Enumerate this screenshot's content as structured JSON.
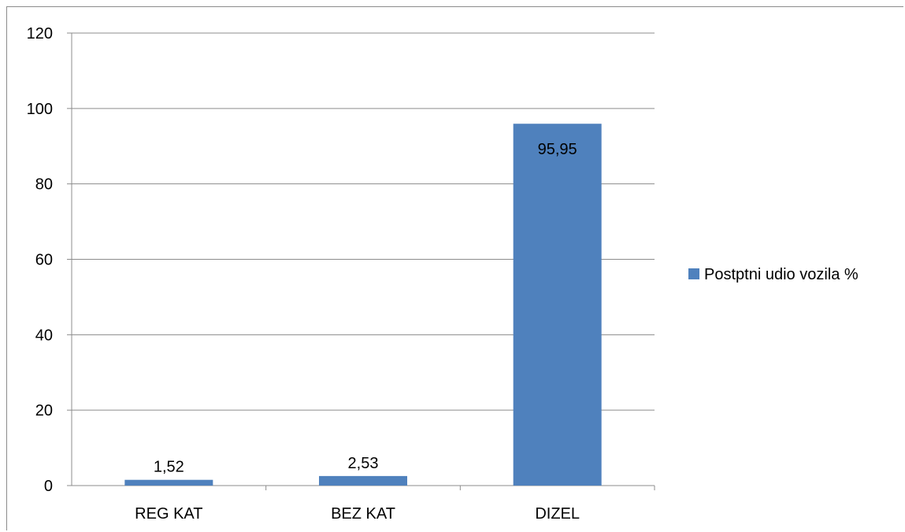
{
  "chart_data": {
    "type": "bar",
    "categories": [
      "REG KAT",
      "BEZ KAT",
      "DIZEL"
    ],
    "series": [
      {
        "name": "Postptni udio vozila %",
        "values": [
          1.52,
          2.53,
          95.95
        ],
        "color": "#4f81bd"
      }
    ],
    "data_labels": [
      "1,52",
      "2,53",
      "95,95"
    ],
    "ylim": [
      0,
      120
    ],
    "yticks": [
      0,
      20,
      40,
      60,
      80,
      100,
      120
    ],
    "ytick_labels": [
      "0",
      "20",
      "40",
      "60",
      "80",
      "100",
      "120"
    ],
    "grid": true,
    "legend_position": "right",
    "title": "",
    "xlabel": "",
    "ylabel": ""
  }
}
